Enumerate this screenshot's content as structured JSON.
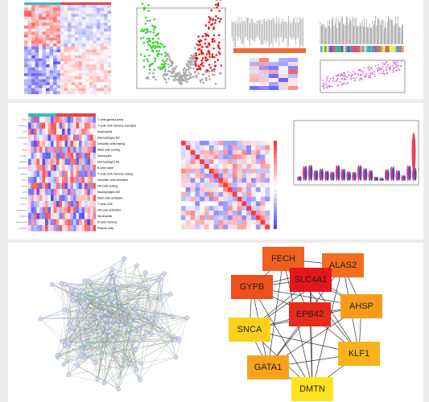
{
  "immune_cells": [
    "T cells gamma delta",
    "T cells CD4 memory activated",
    "Eosinophils",
    "Macrophages M2",
    "Dendritic cells resting",
    "Mast cells resting",
    "Monocytes",
    "Macrophages M1",
    "B cells naive",
    "T cells CD4 memory resting",
    "Dendritic cells activated",
    "NK cells resting",
    "Macrophages M0",
    "Mast cells activated",
    "T cells CD8",
    "NK cells activated",
    "Neutrophils",
    "B cells memory",
    "Plasma cells"
  ],
  "network": {
    "nodes": [
      {
        "label": "FECH",
        "color": "#f0601e"
      },
      {
        "label": "ALAS2",
        "color": "#f46c1e"
      },
      {
        "label": "GYPB",
        "color": "#ef4f1c"
      },
      {
        "label": "SLC4A1",
        "color": "#e5161c"
      },
      {
        "label": "AHSP",
        "color": "#f99a1b"
      },
      {
        "label": "SNCA",
        "color": "#fbd11b"
      },
      {
        "label": "EPB42",
        "color": "#e8291d"
      },
      {
        "label": "KLF1",
        "color": "#fab11a"
      },
      {
        "label": "GATA1",
        "color": "#f7a21b"
      },
      {
        "label": "DMTN",
        "color": "#fde41e"
      }
    ]
  }
}
